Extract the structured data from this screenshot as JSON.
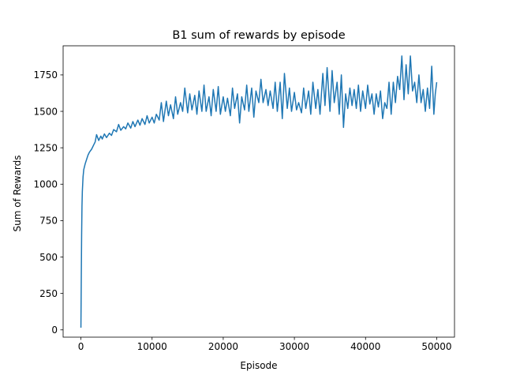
{
  "chart_data": {
    "type": "line",
    "title": "B1 sum of rewards by episode",
    "xlabel": "Episode",
    "ylabel": "Sum of Rewards",
    "xlim": [
      -2500,
      52500
    ],
    "ylim": [
      -50,
      1950
    ],
    "xticks": [
      0,
      10000,
      20000,
      30000,
      40000,
      50000
    ],
    "yticks": [
      0,
      250,
      500,
      750,
      1000,
      1250,
      1500,
      1750
    ],
    "grid": false,
    "colors": {
      "series": "#1f77b4"
    },
    "series": [
      {
        "values": [
          [
            0,
            15
          ],
          [
            50,
            350
          ],
          [
            100,
            650
          ],
          [
            150,
            850
          ],
          [
            200,
            950
          ],
          [
            300,
            1050
          ],
          [
            400,
            1100
          ],
          [
            600,
            1140
          ],
          [
            800,
            1170
          ],
          [
            1000,
            1200
          ],
          [
            1200,
            1220
          ],
          [
            1500,
            1240
          ],
          [
            1800,
            1270
          ],
          [
            2000,
            1290
          ],
          [
            2200,
            1340
          ],
          [
            2500,
            1300
          ],
          [
            2800,
            1330
          ],
          [
            3000,
            1310
          ],
          [
            3300,
            1345
          ],
          [
            3600,
            1320
          ],
          [
            4000,
            1350
          ],
          [
            4300,
            1335
          ],
          [
            4600,
            1375
          ],
          [
            5000,
            1360
          ],
          [
            5300,
            1410
          ],
          [
            5600,
            1370
          ],
          [
            6000,
            1395
          ],
          [
            6300,
            1380
          ],
          [
            6600,
            1420
          ],
          [
            7000,
            1385
          ],
          [
            7300,
            1430
          ],
          [
            7600,
            1395
          ],
          [
            8000,
            1440
          ],
          [
            8300,
            1405
          ],
          [
            8600,
            1450
          ],
          [
            9000,
            1410
          ],
          [
            9300,
            1470
          ],
          [
            9600,
            1420
          ],
          [
            10000,
            1460
          ],
          [
            10300,
            1420
          ],
          [
            10600,
            1480
          ],
          [
            11000,
            1440
          ],
          [
            11300,
            1560
          ],
          [
            11600,
            1430
          ],
          [
            12000,
            1570
          ],
          [
            12300,
            1470
          ],
          [
            12600,
            1545
          ],
          [
            13000,
            1450
          ],
          [
            13300,
            1600
          ],
          [
            13600,
            1480
          ],
          [
            14000,
            1560
          ],
          [
            14300,
            1500
          ],
          [
            14600,
            1660
          ],
          [
            15000,
            1490
          ],
          [
            15300,
            1620
          ],
          [
            15600,
            1510
          ],
          [
            16000,
            1610
          ],
          [
            16300,
            1480
          ],
          [
            16600,
            1640
          ],
          [
            17000,
            1500
          ],
          [
            17300,
            1680
          ],
          [
            17600,
            1500
          ],
          [
            18000,
            1600
          ],
          [
            18300,
            1470
          ],
          [
            18600,
            1650
          ],
          [
            19000,
            1500
          ],
          [
            19300,
            1670
          ],
          [
            19600,
            1480
          ],
          [
            20000,
            1600
          ],
          [
            20300,
            1500
          ],
          [
            20600,
            1590
          ],
          [
            21000,
            1470
          ],
          [
            21300,
            1660
          ],
          [
            21600,
            1520
          ],
          [
            22000,
            1620
          ],
          [
            22300,
            1420
          ],
          [
            22600,
            1600
          ],
          [
            23000,
            1510
          ],
          [
            23300,
            1680
          ],
          [
            23600,
            1500
          ],
          [
            24000,
            1660
          ],
          [
            24300,
            1460
          ],
          [
            24600,
            1640
          ],
          [
            25000,
            1560
          ],
          [
            25300,
            1720
          ],
          [
            25600,
            1560
          ],
          [
            26000,
            1650
          ],
          [
            26300,
            1540
          ],
          [
            26600,
            1640
          ],
          [
            27000,
            1520
          ],
          [
            27300,
            1700
          ],
          [
            27600,
            1500
          ],
          [
            28000,
            1700
          ],
          [
            28300,
            1450
          ],
          [
            28600,
            1760
          ],
          [
            29000,
            1520
          ],
          [
            29300,
            1660
          ],
          [
            29600,
            1500
          ],
          [
            30000,
            1630
          ],
          [
            30300,
            1510
          ],
          [
            30600,
            1560
          ],
          [
            31000,
            1490
          ],
          [
            31300,
            1660
          ],
          [
            31600,
            1520
          ],
          [
            32000,
            1640
          ],
          [
            32300,
            1480
          ],
          [
            32600,
            1700
          ],
          [
            33000,
            1520
          ],
          [
            33300,
            1650
          ],
          [
            33600,
            1480
          ],
          [
            34000,
            1760
          ],
          [
            34300,
            1540
          ],
          [
            34600,
            1800
          ],
          [
            35000,
            1500
          ],
          [
            35300,
            1780
          ],
          [
            35600,
            1560
          ],
          [
            36000,
            1700
          ],
          [
            36300,
            1480
          ],
          [
            36600,
            1750
          ],
          [
            36900,
            1390
          ],
          [
            37200,
            1620
          ],
          [
            37500,
            1520
          ],
          [
            37800,
            1660
          ],
          [
            38100,
            1540
          ],
          [
            38400,
            1650
          ],
          [
            38700,
            1520
          ],
          [
            39000,
            1680
          ],
          [
            39300,
            1500
          ],
          [
            39600,
            1640
          ],
          [
            40000,
            1520
          ],
          [
            40300,
            1680
          ],
          [
            40600,
            1550
          ],
          [
            40900,
            1620
          ],
          [
            41200,
            1480
          ],
          [
            41500,
            1620
          ],
          [
            41800,
            1530
          ],
          [
            42100,
            1640
          ],
          [
            42400,
            1450
          ],
          [
            42700,
            1560
          ],
          [
            43000,
            1520
          ],
          [
            43300,
            1700
          ],
          [
            43600,
            1480
          ],
          [
            43900,
            1700
          ],
          [
            44200,
            1560
          ],
          [
            44500,
            1740
          ],
          [
            44800,
            1650
          ],
          [
            45100,
            1880
          ],
          [
            45400,
            1580
          ],
          [
            45700,
            1820
          ],
          [
            46000,
            1620
          ],
          [
            46300,
            1880
          ],
          [
            46600,
            1640
          ],
          [
            46900,
            1700
          ],
          [
            47200,
            1560
          ],
          [
            47500,
            1750
          ],
          [
            47800,
            1560
          ],
          [
            48100,
            1650
          ],
          [
            48400,
            1500
          ],
          [
            48700,
            1660
          ],
          [
            49000,
            1520
          ],
          [
            49300,
            1810
          ],
          [
            49600,
            1480
          ],
          [
            49800,
            1620
          ],
          [
            50000,
            1700
          ]
        ]
      }
    ]
  }
}
